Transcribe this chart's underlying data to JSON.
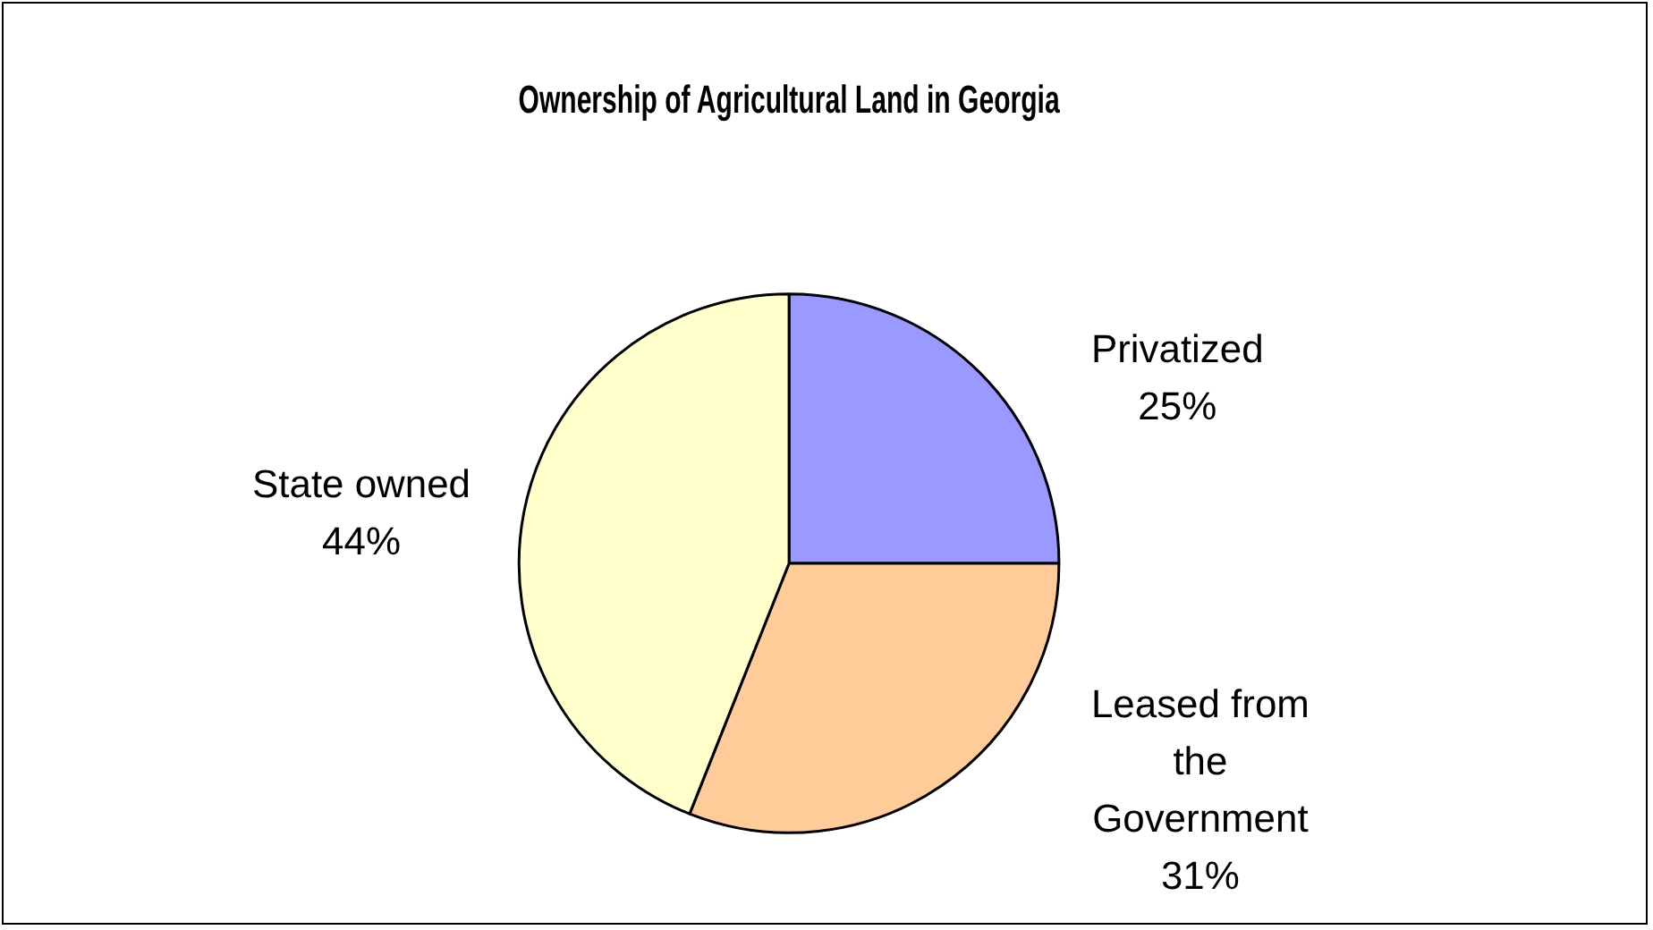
{
  "chart_data": {
    "type": "pie",
    "title": "Ownership of Agricultural Land in Georgia",
    "categories": [
      "Privatized",
      "Leased from the Government",
      "State owned"
    ],
    "values": [
      25,
      31,
      44
    ],
    "value_labels": [
      "25%",
      "31%",
      "44%"
    ],
    "colors": [
      "#9999ff",
      "#ffcc99",
      "#ffffcc"
    ],
    "legend": false
  }
}
